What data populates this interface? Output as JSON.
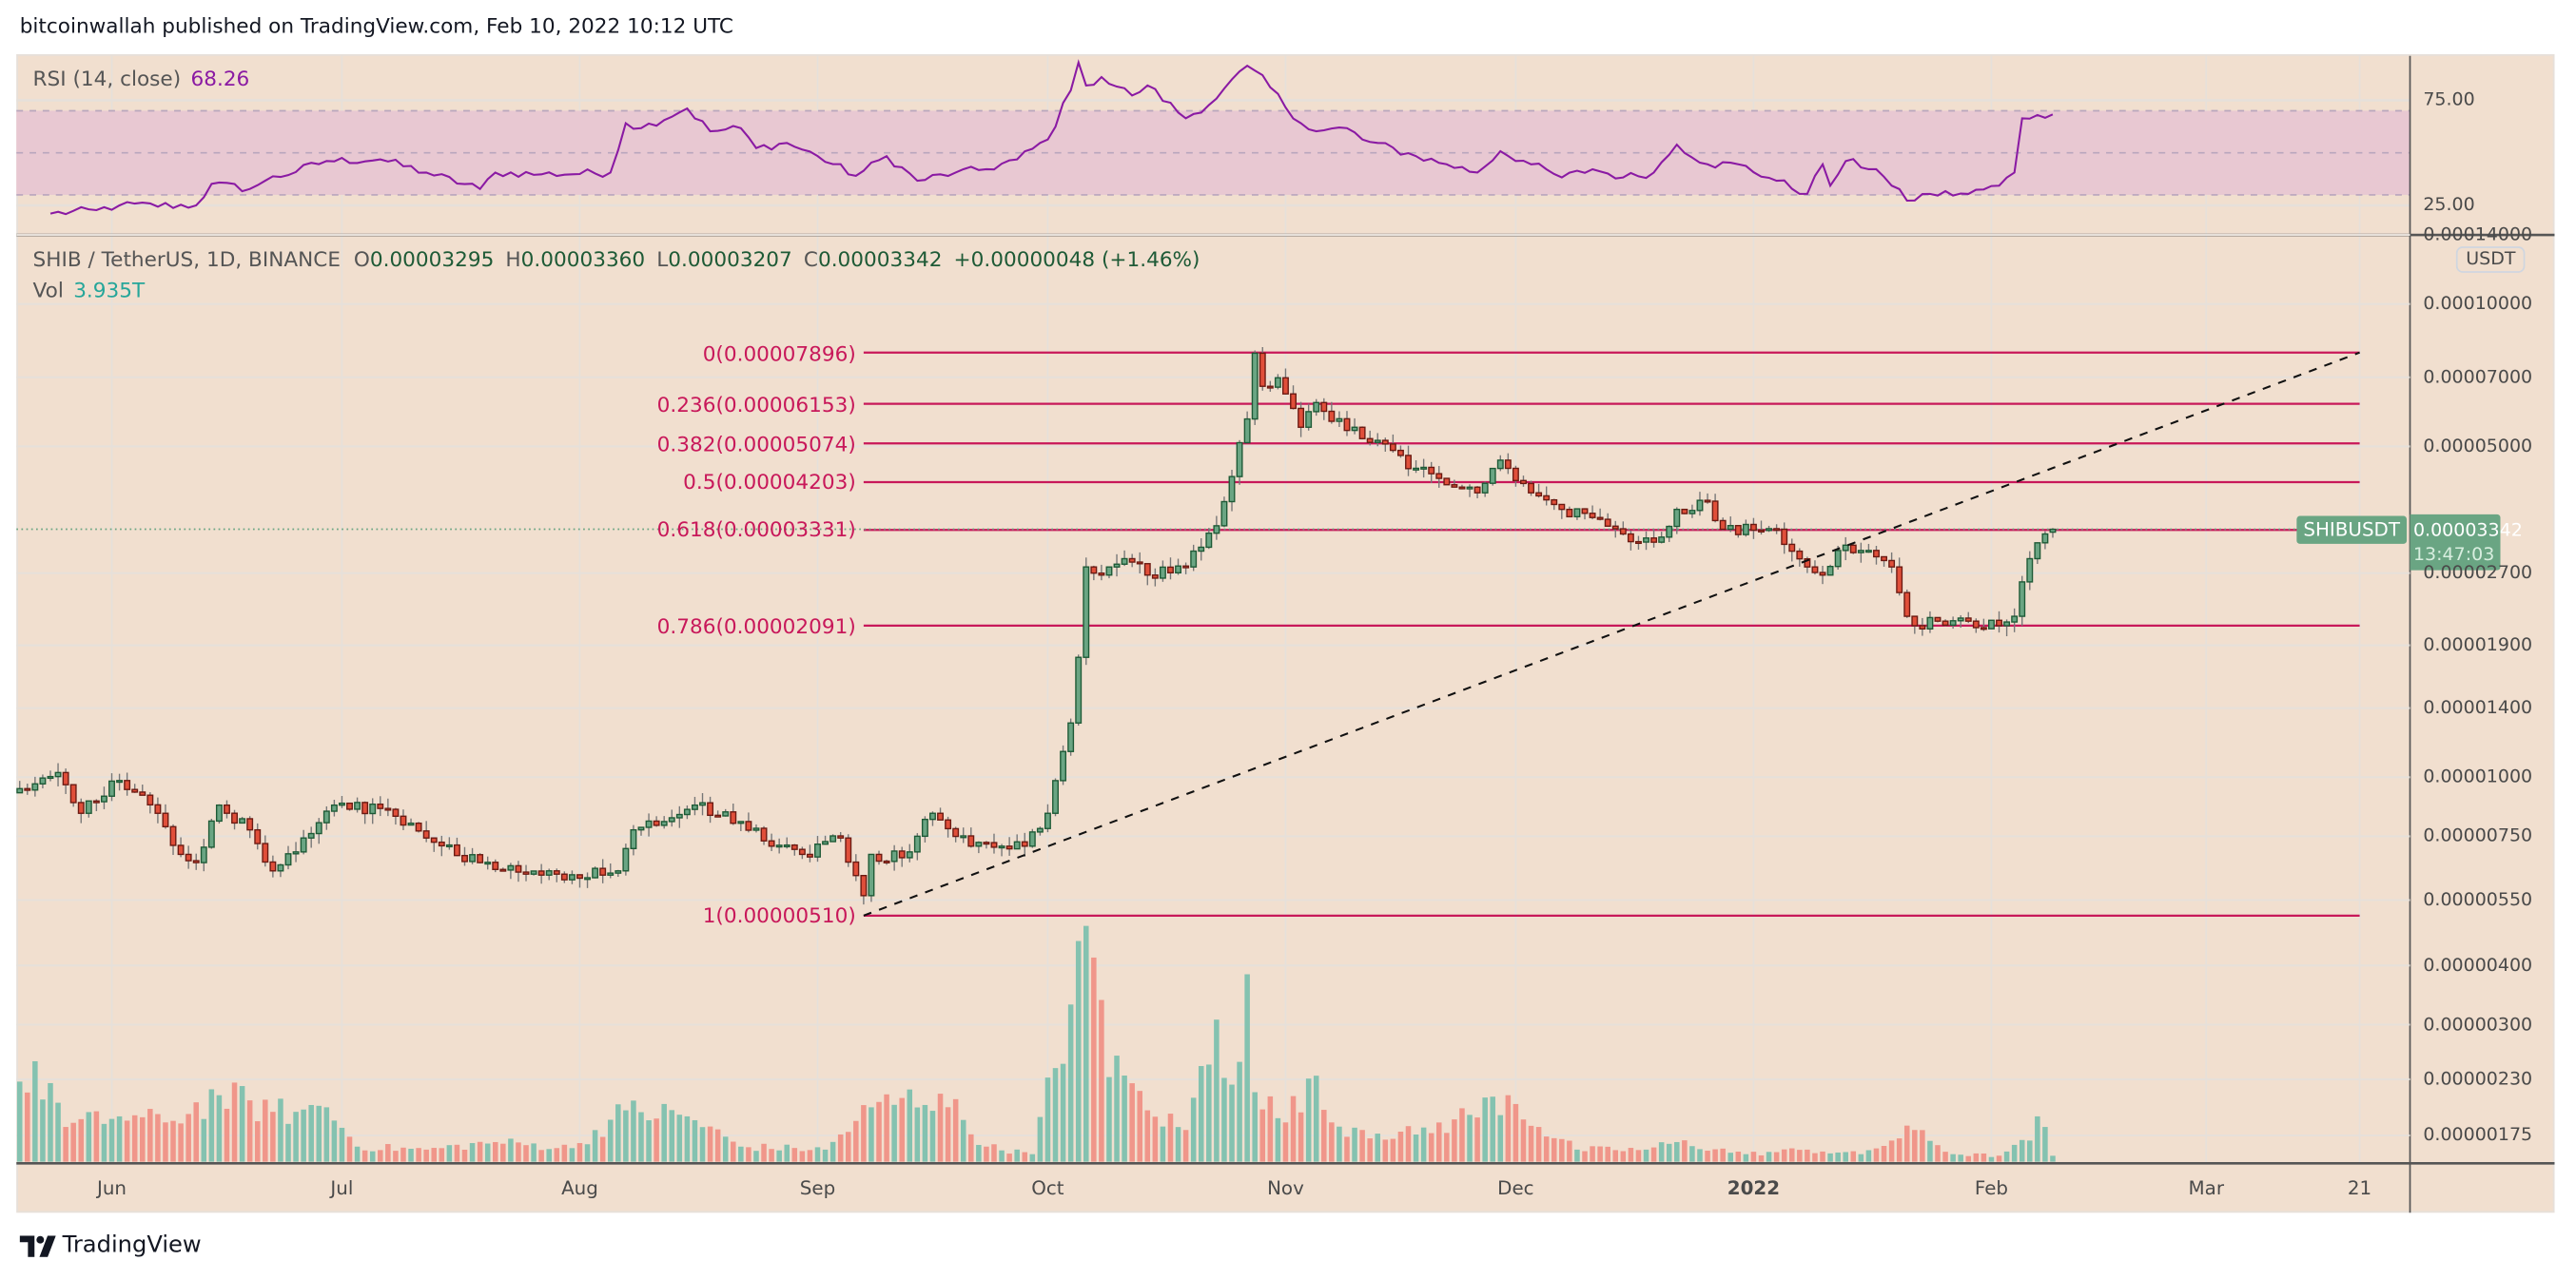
{
  "header": {
    "title": "bitcoinwallah published on TradingView.com, Feb 10, 2022 10:12 UTC"
  },
  "rsi_legend": {
    "label": "RSI (14, close)",
    "value": "68.26"
  },
  "symbol_legend": {
    "symbol": "SHIB / TetherUS, 1D, BINANCE",
    "open_key": "O",
    "open": "0.00003295",
    "high_key": "H",
    "high": "0.00003360",
    "low_key": "L",
    "low": "0.00003207",
    "close_key": "C",
    "close": "0.00003342",
    "change": "+0.00000048 (+1.46%)"
  },
  "volume_legend": {
    "label": "Vol",
    "value": "3.935T"
  },
  "price_tag": {
    "symbol": "SHIBUSDT",
    "price": "0.00003342",
    "countdown": "13:47:03"
  },
  "currency_badge": "USDT",
  "footer": {
    "brand": "TradingView"
  },
  "colors": {
    "up": "#6aa583",
    "up_border": "#1e5a36",
    "down": "#e04f3a",
    "down_border": "#6b1a12",
    "vol_up": "#84c2b0",
    "vol_down": "#f0968a",
    "fib": "#c8185a",
    "rsi": "#8a1aa3",
    "background": "#f1dfcf"
  },
  "chart_data": {
    "type": "candlestick",
    "title": "SHIB / TetherUS, 1D, BINANCE",
    "price_units": "USDT x 1e-8",
    "y_scale": "log",
    "x_units": "days from 2021-05-20",
    "close_anchors": [
      [
        0,
        946
      ],
      [
        5,
        1023
      ],
      [
        8,
        839
      ],
      [
        13,
        984
      ],
      [
        18,
        839
      ],
      [
        21,
        687
      ],
      [
        23,
        660
      ],
      [
        26,
        873
      ],
      [
        30,
        774
      ],
      [
        33,
        634
      ],
      [
        37,
        744
      ],
      [
        41,
        873
      ],
      [
        47,
        859
      ],
      [
        53,
        744
      ],
      [
        60,
        660
      ],
      [
        64,
        650
      ],
      [
        70,
        624
      ],
      [
        78,
        634
      ],
      [
        80,
        774
      ],
      [
        84,
        806
      ],
      [
        88,
        873
      ],
      [
        94,
        806
      ],
      [
        98,
        715
      ],
      [
        102,
        687
      ],
      [
        107,
        744
      ],
      [
        110,
        562
      ],
      [
        111,
        687
      ],
      [
        115,
        676
      ],
      [
        119,
        839
      ],
      [
        124,
        715
      ],
      [
        128,
        715
      ],
      [
        131,
        715
      ],
      [
        134,
        839
      ],
      [
        137,
        1302
      ],
      [
        138,
        1792
      ],
      [
        139,
        2782
      ],
      [
        141,
        2674
      ],
      [
        144,
        2896
      ],
      [
        147,
        2674
      ],
      [
        152,
        2782
      ],
      [
        156,
        3399
      ],
      [
        158,
        4318
      ],
      [
        160,
        5715
      ],
      [
        161,
        7870
      ],
      [
        162,
        6700
      ],
      [
        164,
        6983
      ],
      [
        167,
        5490
      ],
      [
        169,
        6190
      ],
      [
        173,
        5405
      ],
      [
        177,
        5150
      ],
      [
        182,
        4496
      ],
      [
        186,
        4150
      ],
      [
        190,
        3990
      ],
      [
        193,
        4677
      ],
      [
        197,
        3990
      ],
      [
        201,
        3681
      ],
      [
        205,
        3538
      ],
      [
        209,
        3266
      ],
      [
        213,
        3138
      ],
      [
        216,
        3681
      ],
      [
        220,
        3831
      ],
      [
        222,
        3342
      ],
      [
        229,
        3342
      ],
      [
        233,
        2782
      ],
      [
        235,
        2674
      ],
      [
        237,
        3014
      ],
      [
        240,
        3014
      ],
      [
        244,
        2782
      ],
      [
        246,
        2188
      ],
      [
        247,
        2090
      ],
      [
        250,
        2137
      ],
      [
        254,
        2137
      ],
      [
        258,
        2090
      ],
      [
        260,
        2188
      ],
      [
        262,
        2896
      ],
      [
        264,
        3266
      ],
      [
        265,
        3342
      ]
    ],
    "last_candle": {
      "open": 3295,
      "high": 3360,
      "low": 3207,
      "close": 3342
    },
    "volume_units": "T",
    "volume_anchors": [
      [
        0,
        53
      ],
      [
        4,
        52
      ],
      [
        6,
        23
      ],
      [
        13,
        30
      ],
      [
        19,
        26
      ],
      [
        26,
        44
      ],
      [
        33,
        33
      ],
      [
        36,
        33
      ],
      [
        40,
        36
      ],
      [
        44,
        10
      ],
      [
        53,
        8
      ],
      [
        62,
        13
      ],
      [
        72,
        9
      ],
      [
        79,
        34
      ],
      [
        87,
        30
      ],
      [
        94,
        10
      ],
      [
        105,
        8
      ],
      [
        111,
        36
      ],
      [
        120,
        45
      ],
      [
        126,
        10
      ],
      [
        132,
        5
      ],
      [
        137,
        104
      ],
      [
        138,
        146
      ],
      [
        139,
        156
      ],
      [
        141,
        107
      ],
      [
        142,
        56
      ],
      [
        144,
        57
      ],
      [
        147,
        34
      ],
      [
        152,
        21
      ],
      [
        156,
        94
      ],
      [
        158,
        51
      ],
      [
        160,
        124
      ],
      [
        161,
        46
      ],
      [
        165,
        26
      ],
      [
        168,
        55
      ],
      [
        171,
        26
      ],
      [
        175,
        21
      ],
      [
        182,
        18
      ],
      [
        189,
        31
      ],
      [
        194,
        44
      ],
      [
        198,
        23
      ],
      [
        203,
        8
      ],
      [
        212,
        8
      ],
      [
        216,
        13
      ],
      [
        225,
        5
      ],
      [
        233,
        8
      ],
      [
        240,
        5
      ],
      [
        247,
        21
      ],
      [
        252,
        5
      ],
      [
        258,
        4
      ],
      [
        262,
        14
      ],
      [
        263,
        30
      ],
      [
        264,
        23
      ],
      [
        265,
        3.935
      ]
    ],
    "rsi": {
      "period": 14,
      "upper": 70,
      "middle": 50,
      "lower": 30,
      "anchors": [
        [
          4,
          21.1
        ],
        [
          10,
          22.7
        ],
        [
          13,
          25
        ],
        [
          23,
          25
        ],
        [
          25,
          35.2
        ],
        [
          30,
          32.8
        ],
        [
          32,
          36.7
        ],
        [
          40,
          46.1
        ],
        [
          47,
          46.9
        ],
        [
          53,
          40.6
        ],
        [
          60,
          32.8
        ],
        [
          62,
          40.6
        ],
        [
          68,
          39.8
        ],
        [
          77,
          40.6
        ],
        [
          79,
          64.1
        ],
        [
          81,
          61.7
        ],
        [
          87,
          71.1
        ],
        [
          90,
          60.2
        ],
        [
          94,
          61.7
        ],
        [
          96,
          52.3
        ],
        [
          100,
          54.7
        ],
        [
          104,
          48.4
        ],
        [
          109,
          39.1
        ],
        [
          113,
          48.4
        ],
        [
          117,
          36.7
        ],
        [
          122,
          40.6
        ],
        [
          126,
          42.2
        ],
        [
          130,
          46.9
        ],
        [
          134,
          56.3
        ],
        [
          137,
          79.7
        ],
        [
          138,
          93
        ],
        [
          139,
          82
        ],
        [
          141,
          86
        ],
        [
          145,
          77.3
        ],
        [
          147,
          82
        ],
        [
          152,
          66.4
        ],
        [
          156,
          75.8
        ],
        [
          160,
          91.4
        ],
        [
          161,
          89.1
        ],
        [
          167,
          64.1
        ],
        [
          169,
          60.2
        ],
        [
          173,
          61.7
        ],
        [
          175,
          56.3
        ],
        [
          182,
          48.4
        ],
        [
          186,
          44.5
        ],
        [
          190,
          40.6
        ],
        [
          193,
          50.8
        ],
        [
          197,
          44.5
        ],
        [
          201,
          38.3
        ],
        [
          205,
          42.2
        ],
        [
          209,
          38.3
        ],
        [
          213,
          40.6
        ],
        [
          216,
          53.9
        ],
        [
          220,
          44.5
        ],
        [
          224,
          44.5
        ],
        [
          229,
          36.7
        ],
        [
          233,
          30.5
        ],
        [
          235,
          44.5
        ],
        [
          236,
          34.4
        ],
        [
          238,
          46.1
        ],
        [
          242,
          42.2
        ],
        [
          244,
          34.4
        ],
        [
          246,
          27.3
        ],
        [
          249,
          30.5
        ],
        [
          254,
          30.5
        ],
        [
          258,
          34.4
        ],
        [
          260,
          40.6
        ],
        [
          261,
          66.4
        ],
        [
          263,
          68
        ],
        [
          265,
          68.26
        ]
      ]
    },
    "fib_retracement": [
      {
        "label": "0(0.00007896)",
        "price": 7896
      },
      {
        "label": "0.236(0.00006153)",
        "price": 6153
      },
      {
        "label": "0.382(0.00005074)",
        "price": 5074
      },
      {
        "label": "0.5(0.00004203)",
        "price": 4203
      },
      {
        "label": "0.618(0.00003331)",
        "price": 3331
      },
      {
        "label": "0.786(0.00002091)",
        "price": 2091
      },
      {
        "label": "1(0.00000510)",
        "price": 510
      }
    ],
    "fib_range_days": [
      110,
      305
    ],
    "trend_line": {
      "from": [
        110,
        510
      ],
      "to": [
        305,
        7896
      ]
    },
    "price_axis": {
      "labels": [
        "0.00014000",
        "0.00010000",
        "0.00007000",
        "0.00005000",
        "0.00002700",
        "0.00001900",
        "0.00001400",
        "0.00001000",
        "0.00000750",
        "0.00000550",
        "0.00000400",
        "0.00000300",
        "0.00000230",
        "0.00000175"
      ]
    },
    "rsi_axis": {
      "labels": [
        "75.00",
        "25.00"
      ]
    },
    "time_axis": {
      "ticks": [
        [
          "Jun",
          12
        ],
        [
          "Jul",
          42
        ],
        [
          "Aug",
          73
        ],
        [
          "Sep",
          104
        ],
        [
          "Oct",
          134
        ],
        [
          "Nov",
          165
        ],
        [
          "Dec",
          195
        ],
        [
          "2022",
          226
        ],
        [
          "Feb",
          257
        ],
        [
          "Mar",
          285
        ],
        [
          "21",
          305
        ]
      ]
    }
  }
}
